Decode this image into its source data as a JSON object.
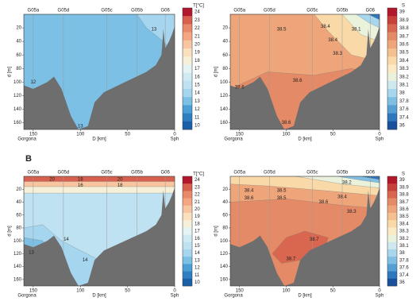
{
  "chart_data": [
    {
      "type": "contour",
      "stations": [
        "G05a",
        "G05d",
        "G05c",
        "G05b",
        "G06"
      ],
      "ylabel": "d [m]",
      "ylim": [
        0,
        170
      ],
      "yticks": [
        20,
        40,
        60,
        80,
        100,
        120,
        140,
        160
      ],
      "xlabel": "D [km]",
      "xlim": [
        160,
        0
      ],
      "xticks": [
        150,
        100,
        50,
        0
      ],
      "x_start_label": "Gorgona",
      "x_end_label": "Sph",
      "colorbar_label": "T[°C]",
      "colorbar_ticks": [
        24,
        23,
        22,
        21,
        20,
        19,
        18,
        17,
        16,
        15,
        14,
        13,
        12,
        11,
        10
      ],
      "colorbar_colors": [
        "#b2182b",
        "#d6604d",
        "#e8896a",
        "#f4a582",
        "#f7c59f",
        "#fbe0c0",
        "#f7f0d8",
        "#e6f3f4",
        "#d0eaf3",
        "#bfe2f2",
        "#a6d6ef",
        "#7cc0e6",
        "#4a9fd4",
        "#2e7fc2",
        "#1a5fa8"
      ],
      "contour_labels": [
        12,
        13,
        13
      ]
    },
    {
      "type": "contour",
      "stations": [
        "G05a",
        "G05d",
        "G05c",
        "G05b",
        "G06"
      ],
      "ylabel": "d [m]",
      "ylim": [
        0,
        170
      ],
      "yticks": [
        20,
        40,
        60,
        80,
        100,
        120,
        140,
        160
      ],
      "xlabel": "D [km]",
      "xlim": [
        160,
        0
      ],
      "xticks": [
        150,
        100,
        50,
        0
      ],
      "x_start_label": "Gorgona",
      "x_end_label": "Sph",
      "colorbar_label": "S",
      "colorbar_ticks": [
        39,
        38.9,
        38.8,
        38.7,
        38.6,
        38.5,
        38.4,
        38.3,
        38.2,
        38.1,
        38,
        37.8,
        37.6,
        37.4,
        36
      ],
      "colorbar_colors": [
        "#b2182b",
        "#c8403a",
        "#d9664f",
        "#e58a66",
        "#efa57a",
        "#f5c08f",
        "#f9d9a8",
        "#fbeac3",
        "#eaf2dc",
        "#cfe8f0",
        "#a8d6ec",
        "#7fbfe3",
        "#559fd3",
        "#2f77bd",
        "#1a4f9c"
      ],
      "contour_labels": [
        38.4,
        38.1,
        38.5,
        38.4,
        38.3,
        38.6,
        38.6,
        38.6
      ]
    },
    {
      "type": "contour",
      "panel_label": "B",
      "stations": [
        "G05a",
        "G05d",
        "G05c",
        "G05b",
        "G06"
      ],
      "ylabel": "d [m]",
      "ylim": [
        0,
        170
      ],
      "yticks": [
        20,
        40,
        60,
        80,
        100,
        120,
        140,
        160
      ],
      "xlabel": "D [km]",
      "xlim": [
        160,
        0
      ],
      "xticks": [
        150,
        100,
        50,
        0
      ],
      "x_start_label": "Gorgona",
      "x_end_label": "Sph",
      "colorbar_label": "T[°C]",
      "colorbar_ticks": [
        24,
        23,
        22,
        21,
        20,
        19,
        18,
        17,
        16,
        15,
        14,
        13,
        12,
        11,
        10
      ],
      "colorbar_colors": [
        "#b2182b",
        "#d6604d",
        "#e8896a",
        "#f4a582",
        "#f7c59f",
        "#fbe0c0",
        "#f7f0d8",
        "#e6f3f4",
        "#d0eaf3",
        "#bfe2f2",
        "#a6d6ef",
        "#7cc0e6",
        "#4a9fd4",
        "#2e7fc2",
        "#1a5fa8"
      ],
      "contour_labels": [
        20,
        18,
        16,
        20,
        18,
        13,
        14,
        14
      ]
    },
    {
      "type": "contour",
      "stations": [
        "G05a",
        "G05d",
        "G05c",
        "G05b",
        "G06"
      ],
      "ylabel": "d [m]",
      "ylim": [
        0,
        170
      ],
      "yticks": [
        20,
        40,
        60,
        80,
        100,
        120,
        140,
        160
      ],
      "xlabel": "D [km]",
      "xlim": [
        160,
        0
      ],
      "xticks": [
        150,
        100,
        50,
        0
      ],
      "x_start_label": "Gorgona",
      "x_end_label": "Sph",
      "colorbar_label": "S",
      "colorbar_ticks": [
        39,
        38.9,
        38.8,
        38.7,
        38.6,
        38.5,
        38.4,
        38.3,
        38.2,
        38.1,
        38,
        37.8,
        37.6,
        37.4,
        36
      ],
      "colorbar_colors": [
        "#b2182b",
        "#c8403a",
        "#d9664f",
        "#e58a66",
        "#efa57a",
        "#f5c08f",
        "#f9d9a8",
        "#fbeac3",
        "#eaf2dc",
        "#cfe8f0",
        "#a8d6ec",
        "#7fbfe3",
        "#559fd3",
        "#2f77bd",
        "#1a4f9c"
      ],
      "contour_labels": [
        38.4,
        38.5,
        38.2,
        38.6,
        38.5,
        38.4,
        38.6,
        38.3,
        38.7,
        38.7
      ]
    }
  ]
}
